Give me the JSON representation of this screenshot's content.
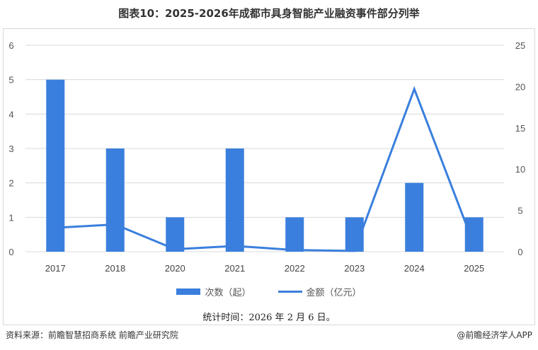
{
  "title": "图表10：2025-2026年成都市具身智能产业融资事件部分列举",
  "legend": {
    "bar_label": "次数（起）",
    "line_label": "金额（亿元）"
  },
  "footnote": "统计时间：2026 年 2 月 6 日。",
  "source": "资料来源：前瞻智慧招商系统  前瞻产业研究院",
  "credit": "@前瞻经济学人APP",
  "colors": {
    "series": "#3A7FDD",
    "grid": "#d9d9d9"
  },
  "chart_data": {
    "type": "bar+line",
    "title": "图表10：2025-2026年成都市具身智能产业融资事件部分列举",
    "categories": [
      "2017",
      "2018",
      "2020",
      "2021",
      "2022",
      "2023",
      "2024",
      "2025"
    ],
    "series": [
      {
        "name": "次数（起）",
        "type": "bar",
        "axis": "left",
        "values": [
          5,
          3,
          1,
          3,
          1,
          1,
          2,
          1
        ]
      },
      {
        "name": "金额（亿元）",
        "type": "line",
        "axis": "right",
        "values": [
          2.9,
          3.3,
          0.3,
          0.7,
          0.2,
          0.1,
          19.7,
          0.8
        ]
      }
    ],
    "left_axis": {
      "ylim": [
        0,
        6
      ],
      "ticks": [
        "0",
        "1",
        "2",
        "3",
        "4",
        "5",
        "6"
      ]
    },
    "right_axis": {
      "ylim": [
        0,
        25
      ],
      "ticks": [
        "0",
        "5",
        "10",
        "15",
        "20",
        "25"
      ]
    },
    "grid": true,
    "legend_position": "bottom"
  }
}
